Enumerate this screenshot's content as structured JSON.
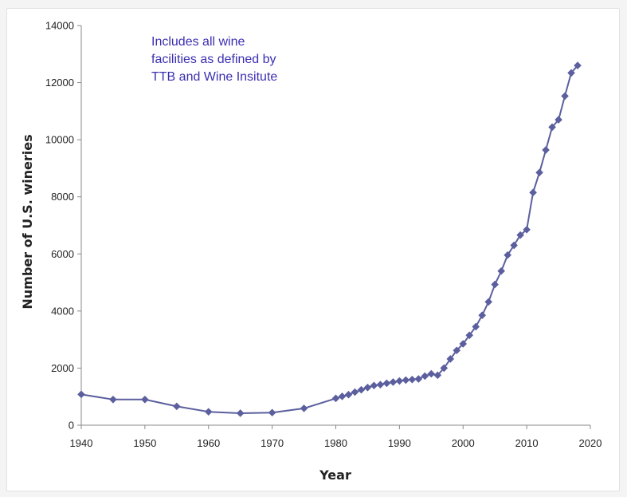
{
  "chart_data": {
    "type": "line",
    "title": "",
    "xlabel": "Year",
    "ylabel": "Number of U.S. wineries",
    "xlim": [
      1940,
      2020
    ],
    "ylim": [
      0,
      14000
    ],
    "x_ticks": [
      1940,
      1950,
      1960,
      1970,
      1980,
      1990,
      2000,
      2010,
      2020
    ],
    "y_ticks": [
      0,
      2000,
      4000,
      6000,
      8000,
      10000,
      12000,
      14000
    ],
    "grid": false,
    "legend": "none",
    "annotation": [
      "Includes all wine",
      "facilities as defined by",
      "TTB and Wine Insitute"
    ],
    "marker": "diamond",
    "line_color": "#5b5f9e",
    "annotation_color": "#3a2fb0",
    "series": [
      {
        "x": [
          1940,
          1945,
          1950,
          1955,
          1960,
          1965,
          1970,
          1975,
          1980,
          1981,
          1982,
          1983,
          1984,
          1985,
          1986,
          1987,
          1988,
          1989,
          1990,
          1991,
          1992,
          1993,
          1994,
          1995,
          1996,
          1997,
          1998,
          1999,
          2000,
          2001,
          2002,
          2003,
          2004,
          2005,
          2006,
          2007,
          2008,
          2009,
          2010,
          2011,
          2012,
          2013,
          2014,
          2015,
          2016,
          2017,
          2018
        ],
        "y": [
          1080,
          900,
          900,
          660,
          470,
          420,
          440,
          590,
          940,
          1010,
          1070,
          1160,
          1240,
          1320,
          1390,
          1420,
          1470,
          1510,
          1550,
          1580,
          1600,
          1620,
          1720,
          1800,
          1750,
          2000,
          2320,
          2620,
          2850,
          3150,
          3450,
          3850,
          4320,
          4930,
          5400,
          5960,
          6300,
          6660,
          6850,
          8150,
          8850,
          9640,
          10440,
          10700,
          11530,
          12340,
          12600
        ]
      }
    ]
  }
}
